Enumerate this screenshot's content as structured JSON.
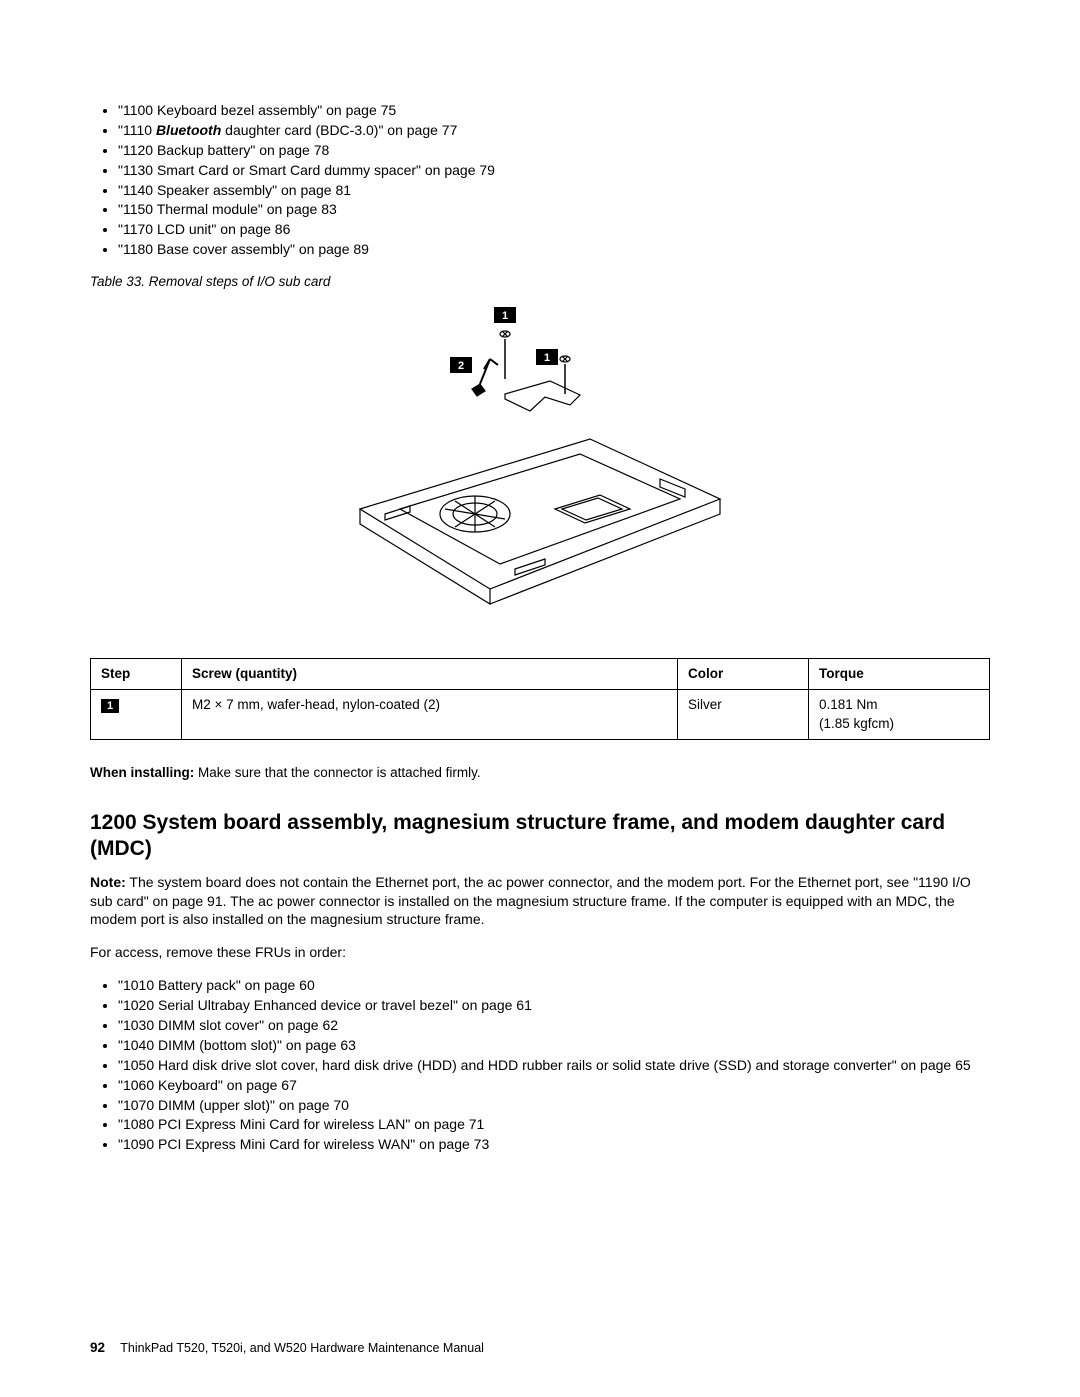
{
  "top_bullets": [
    {
      "text_before": "\"1100 Keyboard bezel assembly\" on page 75",
      "bold": null,
      "text_after": null
    },
    {
      "text_before": "\"1110 ",
      "bold": "Bluetooth",
      "text_after": " daughter card (BDC-3.0)\" on page 77"
    },
    {
      "text_before": "\"1120 Backup battery\" on page 78",
      "bold": null,
      "text_after": null
    },
    {
      "text_before": "\"1130 Smart Card or Smart Card dummy spacer\" on page 79",
      "bold": null,
      "text_after": null
    },
    {
      "text_before": "\"1140 Speaker assembly\" on page 81",
      "bold": null,
      "text_after": null
    },
    {
      "text_before": "\"1150 Thermal module\" on page 83",
      "bold": null,
      "text_after": null
    },
    {
      "text_before": "\"1170 LCD unit\" on page 86",
      "bold": null,
      "text_after": null
    },
    {
      "text_before": "\"1180 Base cover assembly\" on page 89",
      "bold": null,
      "text_after": null
    }
  ],
  "table_caption": "Table 33. Removal steps of I/O sub card",
  "diagram": {
    "callouts": [
      "1",
      "2",
      "1"
    ],
    "stroke": "#000000",
    "fill_bg": "#ffffff"
  },
  "screw_table": {
    "headers": [
      "Step",
      "Screw (quantity)",
      "Color",
      "Torque"
    ],
    "row": {
      "step": "1",
      "screw": "M2 × 7 mm, wafer-head, nylon-coated (2)",
      "color": "Silver",
      "torque_line1": "0.181 Nm",
      "torque_line2": "(1.85 kgfcm)"
    }
  },
  "install_note_bold": "When installing:",
  "install_note_rest": " Make sure that the connector is attached firmly.",
  "section_heading": "1200 System board assembly, magnesium structure frame, and modem daughter card (MDC)",
  "note_bold": "Note:",
  "note_body": " The system board does not contain the Ethernet port, the ac power connector, and the modem port. For the Ethernet port, see \"1190 I/O sub card\" on page 91. The ac power connector is installed on the magnesium structure frame. If the computer is equipped with an MDC, the modem port is also installed on the magnesium structure frame.",
  "access_intro": "For access, remove these FRUs in order:",
  "bottom_bullets": [
    "\"1010 Battery pack\" on page 60",
    "\"1020 Serial Ultrabay Enhanced device or travel bezel\" on page 61",
    "\"1030 DIMM slot cover\" on page 62",
    "\"1040 DIMM (bottom slot)\" on page 63",
    "\"1050 Hard disk drive slot cover, hard disk drive (HDD) and HDD rubber rails or solid state drive (SSD) and storage converter\" on page 65",
    "\"1060 Keyboard\" on page 67",
    "\"1070 DIMM (upper slot)\" on page 70",
    "\"1080 PCI Express Mini Card for wireless LAN\" on page 71",
    "\"1090 PCI Express Mini Card for wireless WAN\" on page 73"
  ],
  "footer_page": "92",
  "footer_text": "ThinkPad T520, T520i, and W520 Hardware Maintenance Manual"
}
